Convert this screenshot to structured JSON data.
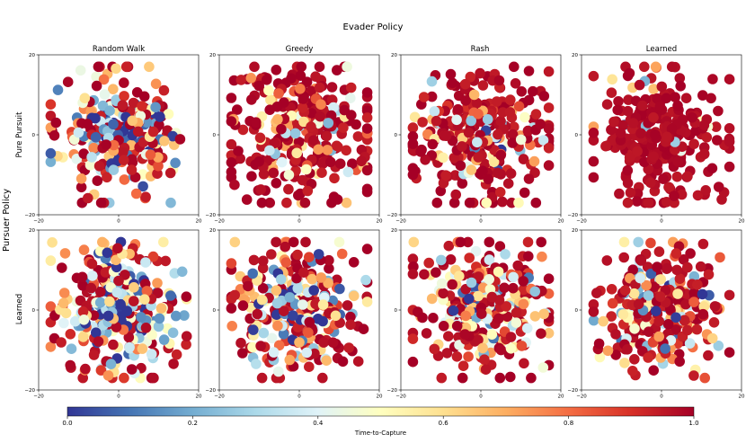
{
  "chart_data": {
    "type": "scatter",
    "title": "Evader Policy",
    "row_axis_title": "Pursuer Policy",
    "columns": [
      "Random Walk",
      "Greedy",
      "Rash",
      "Learned"
    ],
    "rows": [
      "Pure Pursuit",
      "Learned"
    ],
    "xlim": [
      -20,
      20
    ],
    "ylim": [
      -20,
      20
    ],
    "x_ticks": [
      "−20",
      "0",
      "20"
    ],
    "y_ticks": [
      "20",
      "0",
      "−20"
    ],
    "colorbar": {
      "label": "Time-to-Capture",
      "range": [
        0.0,
        1.0
      ],
      "ticks": [
        "0.0",
        "0.2",
        "0.4",
        "0.6",
        "0.8",
        "1.0"
      ],
      "colormap": "RdYlBu_r"
    },
    "panels": [
      {
        "row": "Pure Pursuit",
        "column": "Random Walk",
        "n_points": 260,
        "spread": 7.5,
        "mean_time_to_capture": 0.42
      },
      {
        "row": "Pure Pursuit",
        "column": "Greedy",
        "n_points": 300,
        "spread": 8.5,
        "mean_time_to_capture": 0.82
      },
      {
        "row": "Pure Pursuit",
        "column": "Rash",
        "n_points": 300,
        "spread": 8.0,
        "mean_time_to_capture": 0.72
      },
      {
        "row": "Pure Pursuit",
        "column": "Learned",
        "n_points": 260,
        "spread": 8.0,
        "mean_time_to_capture": 0.97
      },
      {
        "row": "Learned",
        "column": "Random Walk",
        "n_points": 300,
        "spread": 8.0,
        "mean_time_to_capture": 0.38
      },
      {
        "row": "Learned",
        "column": "Greedy",
        "n_points": 280,
        "spread": 8.0,
        "mean_time_to_capture": 0.52
      },
      {
        "row": "Learned",
        "column": "Rash",
        "n_points": 280,
        "spread": 8.0,
        "mean_time_to_capture": 0.55
      },
      {
        "row": "Learned",
        "column": "Learned",
        "n_points": 260,
        "spread": 7.5,
        "mean_time_to_capture": 0.68
      }
    ]
  }
}
